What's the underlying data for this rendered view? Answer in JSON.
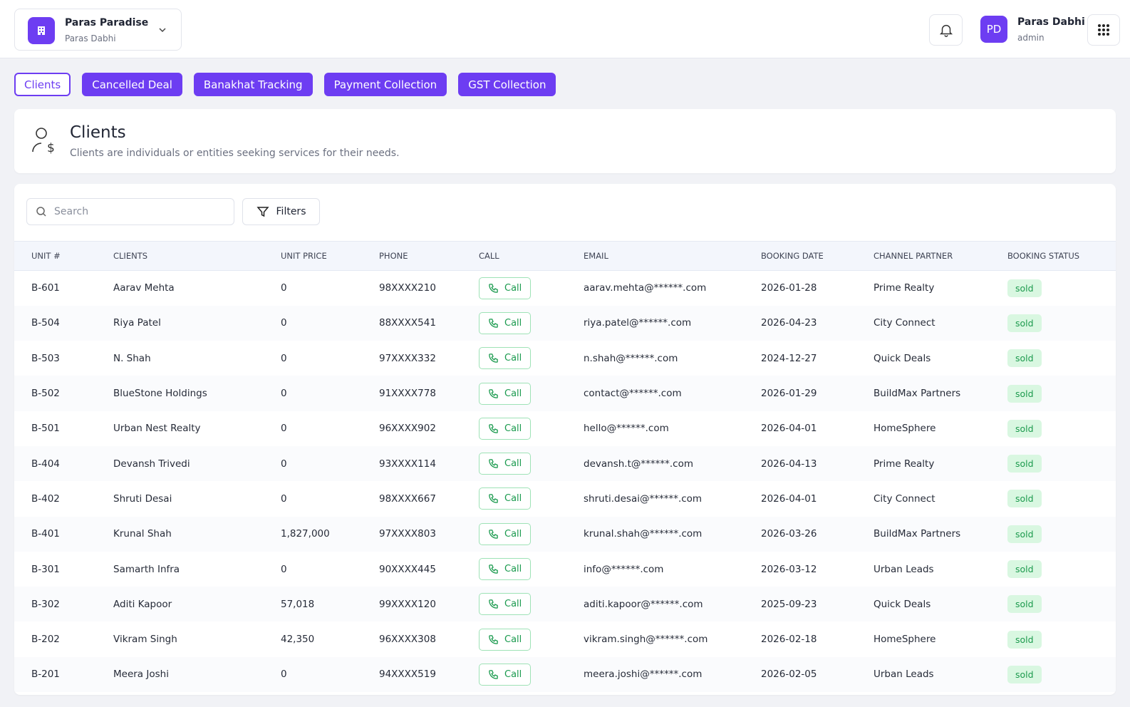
{
  "header": {
    "project": "Paras Paradise",
    "owner": "Paras Dabhi",
    "user_initials": "PD",
    "user_name": "Paras Dabhi",
    "user_role": "admin"
  },
  "tabs": [
    "Clients",
    "Cancelled Deal",
    "Banakhat Tracking",
    "Payment Collection",
    "GST Collection"
  ],
  "section": {
    "title": "Clients",
    "description": "Clients are individuals or entities seeking services for their needs."
  },
  "toolbar": {
    "search_placeholder": "Search",
    "filters": "Filters"
  },
  "table": {
    "columns": [
      "UNIT #",
      "CLIENTS",
      "UNIT PRICE",
      "PHONE",
      "CALL",
      "EMAIL",
      "BOOKING DATE",
      "CHANNEL PARTNER",
      "BOOKING STATUS"
    ],
    "rows": [
      [
        "B-601",
        "Aarav Mehta",
        "0",
        "98XXXX210",
        "Call",
        "aarav.mehta@******.com",
        "2026-01-28",
        "Prime Realty",
        "sold"
      ],
      [
        "B-504",
        "Riya Patel",
        "0",
        "88XXXX541",
        "Call",
        "riya.patel@******.com",
        "2026-04-23",
        "City Connect",
        "sold"
      ],
      [
        "B-503",
        "N. Shah",
        "0",
        "97XXXX332",
        "Call",
        "n.shah@******.com",
        "2024-12-27",
        "Quick Deals",
        "sold"
      ],
      [
        "B-502",
        "BlueStone Holdings",
        "0",
        "91XXXX778",
        "Call",
        "contact@******.com",
        "2026-01-29",
        "BuildMax Partners",
        "sold"
      ],
      [
        "B-501",
        "Urban Nest Realty",
        "0",
        "96XXXX902",
        "Call",
        "hello@******.com",
        "2026-04-01",
        "HomeSphere",
        "sold"
      ],
      [
        "B-404",
        "Devansh Trivedi",
        "0",
        "93XXXX114",
        "Call",
        "devansh.t@******.com",
        "2026-04-13",
        "Prime Realty",
        "sold"
      ],
      [
        "B-402",
        "Shruti Desai",
        "0",
        "98XXXX667",
        "Call",
        "shruti.desai@******.com",
        "2026-04-01",
        "City Connect",
        "sold"
      ],
      [
        "B-401",
        "Krunal Shah",
        "1,827,000",
        "97XXXX803",
        "Call",
        "krunal.shah@******.com",
        "2026-03-26",
        "BuildMax Partners",
        "sold"
      ],
      [
        "B-301",
        "Samarth Infra",
        "0",
        "90XXXX445",
        "Call",
        "info@******.com",
        "2026-03-12",
        "Urban Leads",
        "sold"
      ],
      [
        "B-302",
        "Aditi Kapoor",
        "57,018",
        "99XXXX120",
        "Call",
        "aditi.kapoor@******.com",
        "2025-09-23",
        "Quick Deals",
        "sold"
      ],
      [
        "B-202",
        "Vikram Singh",
        "42,350",
        "96XXXX308",
        "Call",
        "vikram.singh@******.com",
        "2026-02-18",
        "HomeSphere",
        "sold"
      ],
      [
        "B-201",
        "Meera Joshi",
        "0",
        "94XXXX519",
        "Call",
        "meera.joshi@******.com",
        "2026-02-05",
        "Urban Leads",
        "sold"
      ]
    ]
  }
}
